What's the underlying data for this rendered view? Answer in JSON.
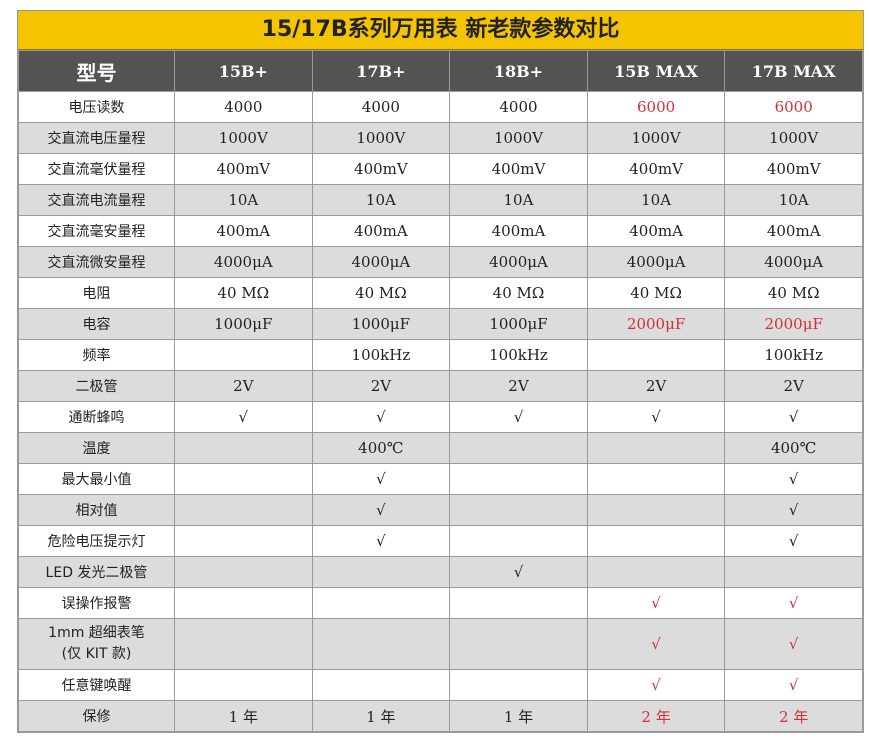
{
  "title": "15/17B系列万用表 新老款参数对比",
  "accent_color": "#f5c400",
  "header_color": "#545252",
  "highlight_color": "#d0303a",
  "columns": [
    "型号",
    "15B+",
    "17B+",
    "18B+",
    "15B MAX",
    "17B MAX"
  ],
  "rows": [
    {
      "label": "电压读数",
      "values": [
        "4000",
        "4000",
        "4000",
        "6000",
        "6000"
      ],
      "highlight": [
        false,
        false,
        false,
        true,
        true
      ]
    },
    {
      "label": "交直流电压量程",
      "values": [
        "1000V",
        "1000V",
        "1000V",
        "1000V",
        "1000V"
      ]
    },
    {
      "label": "交直流毫伏量程",
      "values": [
        "400mV",
        "400mV",
        "400mV",
        "400mV",
        "400mV"
      ]
    },
    {
      "label": "交直流电流量程",
      "values": [
        "10A",
        "10A",
        "10A",
        "10A",
        "10A"
      ]
    },
    {
      "label": "交直流毫安量程",
      "values": [
        "400mA",
        "400mA",
        "400mA",
        "400mA",
        "400mA"
      ]
    },
    {
      "label": "交直流微安量程",
      "values": [
        "4000μA",
        "4000μA",
        "4000μA",
        "4000μA",
        "4000μA"
      ]
    },
    {
      "label": "电阻",
      "values": [
        "40 MΩ",
        "40 MΩ",
        "40 MΩ",
        "40 MΩ",
        "40 MΩ"
      ]
    },
    {
      "label": "电容",
      "values": [
        "1000μF",
        "1000μF",
        "1000μF",
        "2000μF",
        "2000μF"
      ],
      "highlight": [
        false,
        false,
        false,
        true,
        true
      ]
    },
    {
      "label": "频率",
      "values": [
        "",
        "100kHz",
        "100kHz",
        "",
        "100kHz"
      ]
    },
    {
      "label": "二极管",
      "values": [
        "2V",
        "2V",
        "2V",
        "2V",
        "2V"
      ]
    },
    {
      "label": "通断蜂鸣",
      "values": [
        "√",
        "√",
        "√",
        "√",
        "√"
      ]
    },
    {
      "label": "温度",
      "values": [
        "",
        "400℃",
        "",
        "",
        "400℃"
      ]
    },
    {
      "label": "最大最小值",
      "values": [
        "",
        "√",
        "",
        "",
        "√"
      ]
    },
    {
      "label": "相对值",
      "values": [
        "",
        "√",
        "",
        "",
        "√"
      ]
    },
    {
      "label": "危险电压提示灯",
      "values": [
        "",
        "√",
        "",
        "",
        "√"
      ]
    },
    {
      "label": "LED 发光二极管",
      "values": [
        "",
        "",
        "√",
        "",
        ""
      ]
    },
    {
      "label": "误操作报警",
      "values": [
        "",
        "",
        "",
        "√",
        "√"
      ],
      "highlight": [
        false,
        false,
        false,
        true,
        true
      ]
    },
    {
      "label": "1mm 超细表笔\n(仅 KIT 款)",
      "values": [
        "",
        "",
        "",
        "√",
        "√"
      ],
      "highlight": [
        false,
        false,
        false,
        true,
        true
      ]
    },
    {
      "label": "任意键唤醒",
      "values": [
        "",
        "",
        "",
        "√",
        "√"
      ],
      "highlight": [
        false,
        false,
        false,
        true,
        true
      ]
    },
    {
      "label": "保修",
      "values": [
        "1 年",
        "1 年",
        "1 年",
        "2 年",
        "2 年"
      ],
      "highlight": [
        false,
        false,
        false,
        true,
        true
      ]
    }
  ]
}
